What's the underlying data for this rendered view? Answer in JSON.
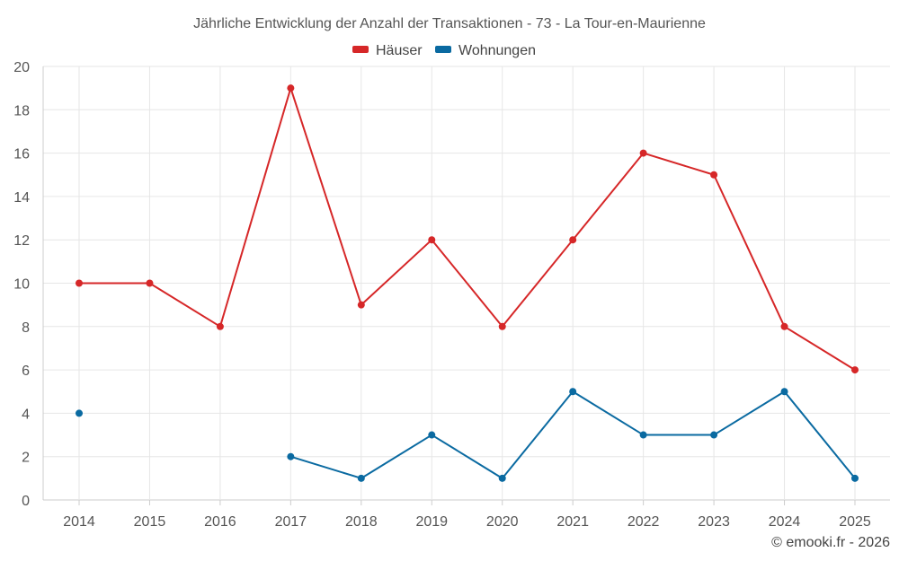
{
  "chart_data": {
    "type": "line",
    "title": "Jährliche Entwicklung der Anzahl der Transaktionen - 73 - La Tour-en-Maurienne",
    "categories": [
      "2014",
      "2015",
      "2016",
      "2017",
      "2018",
      "2019",
      "2020",
      "2021",
      "2022",
      "2023",
      "2024",
      "2025"
    ],
    "ylim": [
      0,
      20
    ],
    "yticks": [
      0,
      2,
      4,
      6,
      8,
      10,
      12,
      14,
      16,
      18,
      20
    ],
    "grid": true,
    "legend_position": "top-center",
    "series": [
      {
        "name": "Häuser",
        "color": "#d62728",
        "values": [
          10,
          10,
          8,
          19,
          9,
          12,
          8,
          12,
          16,
          15,
          8,
          6
        ]
      },
      {
        "name": "Wohnungen",
        "color": "#0a6aa1",
        "values": [
          4,
          null,
          null,
          2,
          1,
          3,
          1,
          5,
          3,
          3,
          5,
          1
        ]
      }
    ],
    "credit": "© emooki.fr - 2026"
  }
}
